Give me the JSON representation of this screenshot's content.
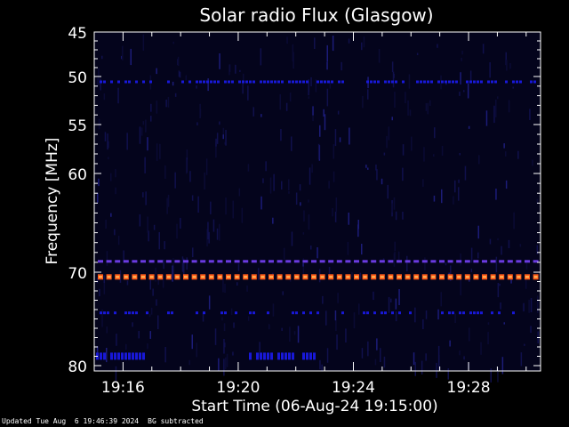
{
  "chart_data": {
    "type": "heatmap",
    "title": "Solar radio Flux (Glasgow)",
    "ylabel": "Frequency [MHz]",
    "xlabel": "Start Time (06-Aug-24 19:15:00)",
    "y_ticks": [
      45,
      50,
      55,
      60,
      70,
      80
    ],
    "y_range": [
      45,
      80
    ],
    "x_ticks": [
      "19:16",
      "19:20",
      "19:24",
      "19:28"
    ],
    "x_range_minutes": [
      0,
      15.5
    ],
    "colors": {
      "background": "#000000",
      "field": "#04041c",
      "axes": "#ffffff",
      "low": "#1818d8",
      "mid": "#6a3ae0",
      "high": "#ff5a18",
      "peak": "#ffc060"
    },
    "bands": [
      {
        "freq": 50.6,
        "level": "low",
        "note": "intermittent emission"
      },
      {
        "freq": 68.9,
        "level": "mid",
        "note": "dashed emission line"
      },
      {
        "freq": 70.5,
        "level": "high",
        "note": "strongest emission line"
      },
      {
        "freq": 74.4,
        "level": "low",
        "note": "faint line"
      },
      {
        "freq": 78.8,
        "level": "low",
        "note": "bursts near 19:15-19:17 and 19:21-19:22"
      }
    ]
  },
  "footer": {
    "updated": "Updated Tue Aug  6 19:46:39 2024",
    "note": "BG subtracted"
  }
}
